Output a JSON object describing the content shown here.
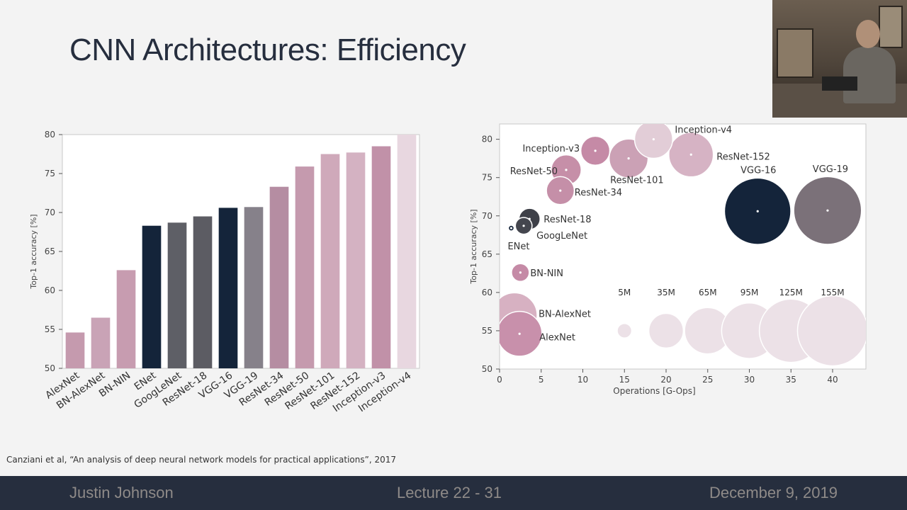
{
  "slide": {
    "title": "CNN Architectures: Efficiency",
    "citation": "Canziani et al, “An analysis of deep neural network models for practical applications”, 2017",
    "footer": {
      "left": "Justin Johnson",
      "center": "Lecture 22 - 31",
      "right": "December 9, 2019"
    }
  },
  "chart_data": [
    {
      "type": "bar",
      "title": "",
      "xlabel": "",
      "ylabel": "Top-1 accuracy [%]",
      "ylim": [
        50,
        80
      ],
      "yticks": [
        50,
        55,
        60,
        65,
        70,
        75,
        80
      ],
      "grid": false,
      "categories": [
        "AlexNet",
        "BN-AlexNet",
        "BN-NIN",
        "ENet",
        "GoogLeNet",
        "ResNet-18",
        "VGG-16",
        "VGG-19",
        "ResNet-34",
        "ResNet-50",
        "ResNet-101",
        "ResNet-152",
        "Inception-v3",
        "Inception-v4"
      ],
      "values": [
        54.6,
        56.5,
        62.6,
        68.3,
        68.7,
        69.5,
        70.6,
        70.7,
        73.3,
        75.9,
        77.5,
        77.7,
        78.5,
        80.0
      ],
      "colors": [
        "#c59aae",
        "#c9a3b6",
        "#c79cb0",
        "#14243a",
        "#5e5f66",
        "#5c5c63",
        "#14243a",
        "#86818a",
        "#b58da2",
        "#c59aae",
        "#cfa9ba",
        "#d4b2c2",
        "#c191a8",
        "#e8d7e0"
      ]
    },
    {
      "type": "scatter",
      "title": "",
      "xlabel": "Operations [G-Ops]",
      "ylabel": "Top-1 accuracy [%]",
      "xlim": [
        0,
        44
      ],
      "ylim": [
        50,
        82
      ],
      "xticks": [
        0,
        5,
        10,
        15,
        20,
        25,
        30,
        35,
        40
      ],
      "yticks": [
        50,
        55,
        60,
        65,
        70,
        75,
        80
      ],
      "grid": false,
      "points": [
        {
          "name": "AlexNet",
          "x": 2.4,
          "y": 54.6,
          "params_m": 61,
          "color": "#c890ab"
        },
        {
          "name": "BN-AlexNet",
          "x": 1.8,
          "y": 57.0,
          "params_m": 62,
          "color": "#d7b1c2"
        },
        {
          "name": "BN-NIN",
          "x": 2.5,
          "y": 62.6,
          "params_m": 8,
          "color": "#c58aa6"
        },
        {
          "name": "ENet",
          "x": 1.4,
          "y": 68.4,
          "params_m": 0.4,
          "color": "#14243a"
        },
        {
          "name": "GoogLeNet",
          "x": 2.9,
          "y": 68.7,
          "params_m": 7,
          "color": "#44464e"
        },
        {
          "name": "ResNet-18",
          "x": 3.6,
          "y": 69.6,
          "params_m": 12,
          "color": "#3e4048"
        },
        {
          "name": "ResNet-34",
          "x": 7.3,
          "y": 73.3,
          "params_m": 22,
          "color": "#c58fa8"
        },
        {
          "name": "ResNet-50",
          "x": 8.0,
          "y": 76.0,
          "params_m": 26,
          "color": "#c68fa8"
        },
        {
          "name": "Inception-v3",
          "x": 11.5,
          "y": 78.5,
          "params_m": 24,
          "color": "#c58aa6"
        },
        {
          "name": "ResNet-101",
          "x": 15.5,
          "y": 77.5,
          "params_m": 45,
          "color": "#cba1b5"
        },
        {
          "name": "Inception-v4",
          "x": 18.5,
          "y": 80.0,
          "params_m": 43,
          "color": "#e2cdd7"
        },
        {
          "name": "ResNet-152",
          "x": 23.0,
          "y": 78.0,
          "params_m": 60,
          "color": "#d6b3c4"
        },
        {
          "name": "VGG-16",
          "x": 31.0,
          "y": 70.6,
          "params_m": 138,
          "color": "#14243a"
        },
        {
          "name": "VGG-19",
          "x": 39.4,
          "y": 70.7,
          "params_m": 144,
          "color": "#7b7179"
        }
      ],
      "size_legend": [
        {
          "label": "5M",
          "x": 15.0,
          "y": 55.0,
          "params_m": 5
        },
        {
          "label": "35M",
          "x": 20.0,
          "y": 55.0,
          "params_m": 35
        },
        {
          "label": "65M",
          "x": 25.0,
          "y": 55.0,
          "params_m": 65
        },
        {
          "label": "95M",
          "x": 30.0,
          "y": 55.0,
          "params_m": 95
        },
        {
          "label": "125M",
          "x": 35.0,
          "y": 55.0,
          "params_m": 125
        },
        {
          "label": "155M",
          "x": 40.0,
          "y": 55.0,
          "params_m": 155
        }
      ]
    }
  ]
}
